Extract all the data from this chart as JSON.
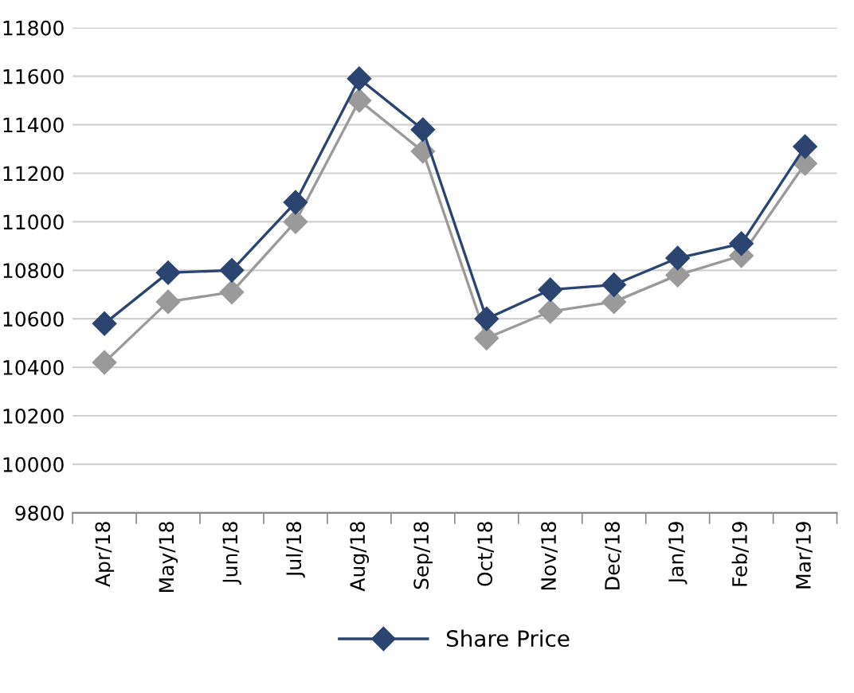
{
  "chart_data": {
    "type": "line",
    "categories": [
      "Apr/18",
      "May/18",
      "Jun/18",
      "Jul/18",
      "Aug/18",
      "Sep/18",
      "Oct/18",
      "Nov/18",
      "Dec/18",
      "Jan/19",
      "Feb/19",
      "Mar/19"
    ],
    "series": [
      {
        "name": "Share Price",
        "color": "#2b4570",
        "values": [
          10580,
          10790,
          10800,
          11080,
          11590,
          11380,
          10600,
          10720,
          10740,
          10850,
          10910,
          11310
        ]
      },
      {
        "color": "#9a9a9a",
        "values": [
          10420,
          10670,
          10710,
          11000,
          11500,
          11290,
          10520,
          10630,
          10670,
          10780,
          10860,
          11240
        ]
      }
    ],
    "ylim": [
      9800,
      11800
    ],
    "yticks": [
      9800,
      10000,
      10200,
      10400,
      10600,
      10800,
      11000,
      11200,
      11400,
      11600,
      11800
    ],
    "grid": "y",
    "legend": "bottom",
    "marker": "diamond",
    "line_style": "solid"
  }
}
